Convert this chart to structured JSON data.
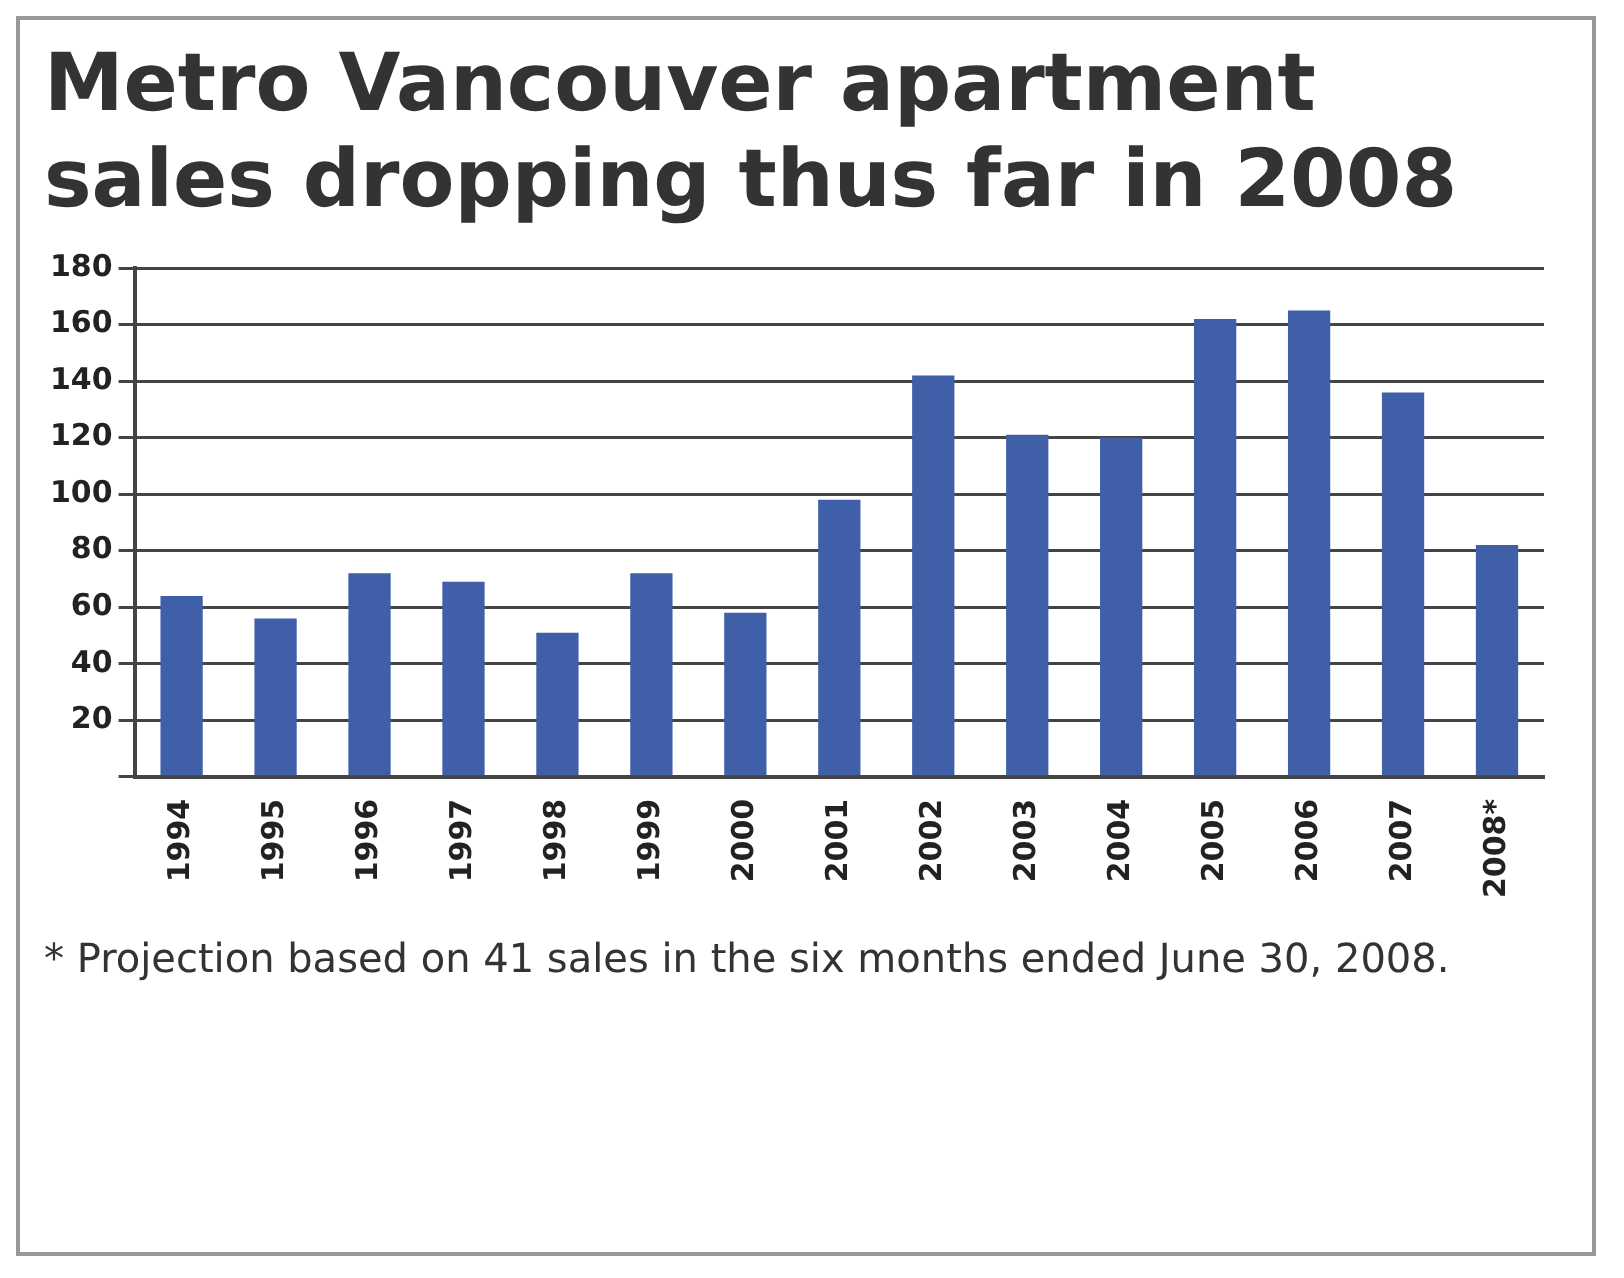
{
  "chart_data": {
    "type": "bar",
    "title": "Metro Vancouver apartment sales dropping thus far in 2008",
    "categories": [
      "1994",
      "1995",
      "1996",
      "1997",
      "1998",
      "1999",
      "2000",
      "2001",
      "2002",
      "2003",
      "2004",
      "2005",
      "2006",
      "2007",
      "2008*"
    ],
    "values": [
      64,
      56,
      72,
      69,
      51,
      72,
      58,
      98,
      142,
      121,
      120,
      162,
      165,
      136,
      82
    ],
    "color": "#3f5fa8",
    "ylim": [
      0,
      180
    ],
    "yticks": [
      {
        "value": 0,
        "label": null
      },
      20,
      40,
      60,
      80,
      100,
      120,
      140,
      160,
      180
    ],
    "grid": "y",
    "annotations": [
      "* Projection based on 41 sales in the six months ended June 30, 2008."
    ]
  }
}
